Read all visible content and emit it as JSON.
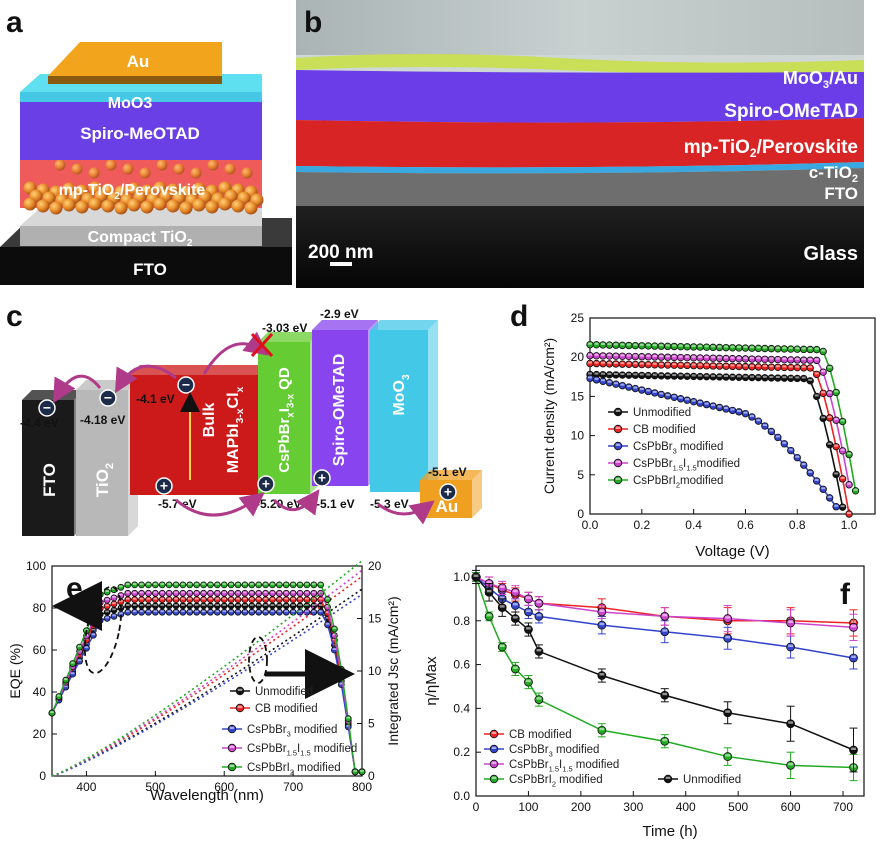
{
  "panel_a": {
    "label": "a",
    "layers": {
      "au": "Au",
      "moo3": "MoO3",
      "spiro": "Spiro-MeOTAD",
      "perov_pre": "mp-TiO",
      "perov_sub": "2",
      "perov_post": "/Perovskite",
      "compact_pre": "Compact TiO",
      "compact_sub": "2",
      "fto": "FTO"
    }
  },
  "panel_b": {
    "label": "b",
    "layers": {
      "moo3au_pre": "MoO",
      "moo3au_sub": "3",
      "moo3au_post": "/Au",
      "spiro": "Spiro-OMeTAD",
      "perov_pre": "mp-TiO",
      "perov_sub": "2",
      "perov_post": "/Perovskite",
      "ctio2_pre": "c-TiO",
      "ctio2_sub": "2",
      "fto": "FTO",
      "glass": "Glass"
    },
    "scale_bar": "200 nm"
  },
  "panel_c": {
    "label": "c",
    "blocks": {
      "fto": "FTO",
      "tio2_pre": "TiO",
      "tio2_sub": "2",
      "bulk_line1": "Bulk",
      "bulk_line2": "MAPbI3-xClx",
      "qd": "CsPbBrxI3-x QD",
      "spiro": "Spiro-OMeTAD",
      "moo3": "MoO3",
      "au": "Au"
    },
    "energies": {
      "fto": "-4.4 eV",
      "tio2": "-4.18 eV",
      "bulk_cb": "-4.1 eV",
      "bulk_vb": "-5.7 eV",
      "qd_cb": "-3.03 eV",
      "qd_vb": "-5.20 eV",
      "spiro_cb": "-2.9 eV",
      "spiro_vb": "-5.1 eV",
      "moo3_vb": "-5.3 eV",
      "au": "-5.1 eV"
    },
    "colors": {
      "fto": "#1a1a1a",
      "tio2": "#b8b8b8",
      "bulk": "#cc1a1a",
      "qd": "#66cc33",
      "spiro": "#8844ee",
      "moo3": "#44c8e8",
      "au": "#f0a020",
      "arrow": "#b03a8a"
    }
  },
  "panel_d": {
    "label": "d",
    "xlabel": "Voltage (V)",
    "ylabel": "Current density (mA/cm²)",
    "legend": [
      "Unmodified",
      "CB modified",
      "CsPbBr3 modified",
      "CsPbBr1.5I1.5modified",
      "CsPbBrI2modified"
    ]
  },
  "panel_e": {
    "label": "e",
    "xlabel": "Wavelength (nm)",
    "ylabel": "EQE (%)",
    "y2label": "Integrated Jsc (mA/cm²)",
    "legend": [
      "Unmodified",
      "CB modified",
      "CsPbBr3 modified",
      "CsPbBr1.5I1.5 modified",
      "CsPbBrI2 modified"
    ]
  },
  "panel_f": {
    "label": "f",
    "xlabel": "Time (h)",
    "ylabel": "η/ηMax",
    "legend": [
      "CB modified",
      "CsPbBr3 modified",
      "CsPbBr1.5I1.5 modified",
      "CsPbBrI2 modified",
      "Unmodified"
    ]
  },
  "chart_data": [
    {
      "type": "line",
      "panel": "d",
      "xlabel": "Voltage (V)",
      "ylabel": "Current density (mA/cm²)",
      "xlim": [
        0,
        1.1
      ],
      "ylim": [
        0,
        25
      ],
      "xticks": [
        0.0,
        0.2,
        0.4,
        0.6,
        0.8,
        1.0
      ],
      "yticks": [
        0,
        5,
        10,
        15,
        20,
        25
      ],
      "series": [
        {
          "name": "Unmodified",
          "color": "#111111",
          "jsc": 17.8,
          "voc": 0.98,
          "fillfactor": 0.86
        },
        {
          "name": "CB modified",
          "color": "#ee2222",
          "jsc": 19.2,
          "voc": 1.0,
          "fillfactor": 0.86
        },
        {
          "name": "CsPbBr3 modified",
          "color": "#3344cc",
          "jsc": 17.3,
          "voc": 0.97,
          "fillfactor": 0.6
        },
        {
          "name": "CsPbBr1.5I1.5modified",
          "color": "#cc44cc",
          "jsc": 20.2,
          "voc": 1.02,
          "fillfactor": 0.86
        },
        {
          "name": "CsPbBrI2modified",
          "color": "#22aa22",
          "jsc": 21.6,
          "voc": 1.04,
          "fillfactor": 0.86
        }
      ]
    },
    {
      "type": "line",
      "panel": "e",
      "xlabel": "Wavelength (nm)",
      "ylabel": "EQE (%)",
      "y2label": "Integrated Jsc (mA/cm²)",
      "xlim": [
        350,
        800
      ],
      "ylim": [
        0,
        100
      ],
      "y2lim": [
        0,
        20
      ],
      "xticks": [
        400,
        500,
        600,
        700,
        800
      ],
      "yticks": [
        0,
        20,
        40,
        60,
        80,
        100
      ],
      "y2ticks": [
        0,
        5,
        10,
        15,
        20
      ],
      "series": [
        {
          "name": "Unmodified",
          "color": "#111111",
          "plateau_eqe": 81,
          "jsc_end": 17.8
        },
        {
          "name": "CB modified",
          "color": "#ee2222",
          "plateau_eqe": 84,
          "jsc_end": 19.0
        },
        {
          "name": "CsPbBr3 modified",
          "color": "#3344cc",
          "plateau_eqe": 78,
          "jsc_end": 17.3
        },
        {
          "name": "CsPbBr1.5I1.5 modified",
          "color": "#cc44cc",
          "plateau_eqe": 87,
          "jsc_end": 19.6
        },
        {
          "name": "CsPbBrI2 modified",
          "color": "#22aa22",
          "plateau_eqe": 91,
          "jsc_end": 20.5
        }
      ]
    },
    {
      "type": "line",
      "panel": "f",
      "xlabel": "Time (h)",
      "ylabel": "η/ηMax",
      "xlim": [
        0,
        740
      ],
      "ylim": [
        0,
        1.05
      ],
      "xticks": [
        0,
        100,
        200,
        300,
        400,
        500,
        600,
        700
      ],
      "yticks": [
        0.0,
        0.2,
        0.4,
        0.6,
        0.8,
        1.0
      ],
      "x": [
        0,
        25,
        50,
        75,
        100,
        120,
        240,
        360,
        480,
        600,
        720
      ],
      "series": [
        {
          "name": "CB modified",
          "color": "#ee2222",
          "values": [
            1.0,
            0.97,
            0.94,
            0.92,
            0.9,
            0.88,
            0.86,
            0.82,
            0.8,
            0.8,
            0.79
          ],
          "errors": [
            0.02,
            0.03,
            0.03,
            0.03,
            0.03,
            0.03,
            0.04,
            0.04,
            0.06,
            0.06,
            0.06
          ]
        },
        {
          "name": "CsPbBr3 modified",
          "color": "#3344cc",
          "values": [
            1.0,
            0.95,
            0.9,
            0.87,
            0.84,
            0.82,
            0.78,
            0.75,
            0.72,
            0.68,
            0.63
          ],
          "errors": [
            0.02,
            0.03,
            0.03,
            0.03,
            0.03,
            0.03,
            0.04,
            0.05,
            0.05,
            0.05,
            0.05
          ]
        },
        {
          "name": "CsPbBr1.5I1.5 modified",
          "color": "#cc44cc",
          "values": [
            1.0,
            0.97,
            0.95,
            0.93,
            0.9,
            0.88,
            0.84,
            0.82,
            0.81,
            0.79,
            0.77
          ],
          "errors": [
            0.02,
            0.03,
            0.03,
            0.03,
            0.03,
            0.03,
            0.03,
            0.04,
            0.06,
            0.06,
            0.06
          ]
        },
        {
          "name": "CsPbBrI2 modified",
          "color": "#22aa22",
          "values": [
            1.0,
            0.82,
            0.68,
            0.58,
            0.52,
            0.44,
            0.3,
            0.25,
            0.18,
            0.14,
            0.13
          ],
          "errors": [
            0.02,
            0.02,
            0.02,
            0.03,
            0.03,
            0.03,
            0.03,
            0.03,
            0.04,
            0.06,
            0.06
          ]
        },
        {
          "name": "Unmodified",
          "color": "#111111",
          "values": [
            1.0,
            0.93,
            0.86,
            0.81,
            0.76,
            0.66,
            0.55,
            0.46,
            0.38,
            0.33,
            0.21
          ],
          "errors": [
            0.03,
            0.04,
            0.04,
            0.03,
            0.03,
            0.03,
            0.03,
            0.03,
            0.05,
            0.08,
            0.1
          ]
        }
      ]
    }
  ]
}
